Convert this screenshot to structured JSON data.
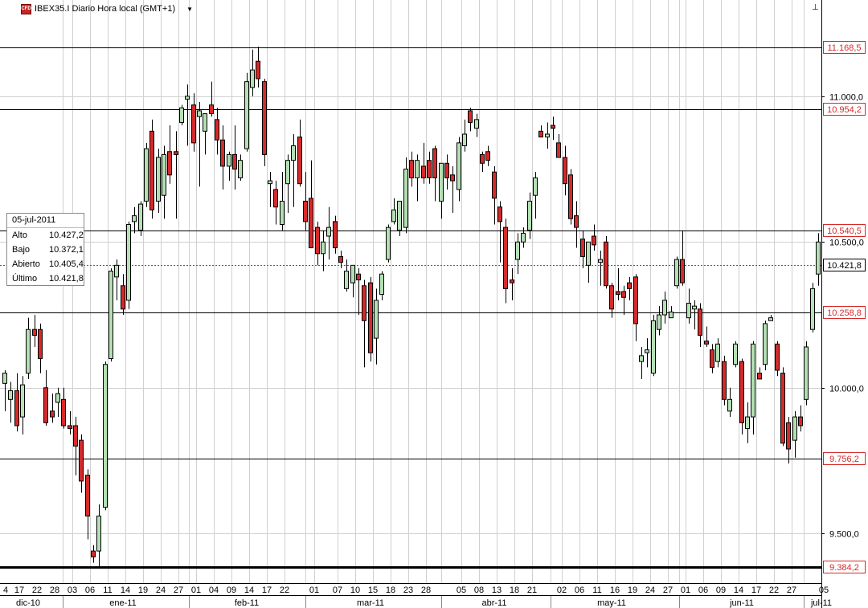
{
  "header": {
    "icon_label": "CFD",
    "title": "IBEX35.I Diario Hora local (GMT+1)",
    "dropdown_glyph": "▼",
    "pin_glyph": "⊥"
  },
  "info_box": {
    "date": "05-jul-2011",
    "rows": [
      {
        "label": "Alto",
        "value": "10.427,2"
      },
      {
        "label": "Bajo",
        "value": "10.372,1"
      },
      {
        "label": "Abierto",
        "value": "10.405,4"
      },
      {
        "label": "Último",
        "value": "10.421,8"
      }
    ]
  },
  "colors": {
    "up": "#b4e0b4",
    "down": "#d42a2a",
    "wick": "#000000",
    "grid": "#d0d0d0",
    "price_label": "#d42a2a",
    "current_line": "#d42a2a"
  },
  "chart_data": {
    "type": "candlestick",
    "title": "IBEX35.I Diario Hora local (GMT+1)",
    "ylim": [
      9330,
      11330
    ],
    "y_ticks": [
      {
        "value": 9500,
        "label": "9.500,0"
      },
      {
        "value": 10000,
        "label": "10.000,0"
      },
      {
        "value": 10500,
        "label": "10.500,0"
      },
      {
        "value": 11000,
        "label": "11.000,0"
      }
    ],
    "levels": [
      {
        "value": 11168.5,
        "label": "11.168,5"
      },
      {
        "value": 10954.2,
        "label": "10.954,2"
      },
      {
        "value": 10540.5,
        "label": "10.540,5"
      },
      {
        "value": 10258.8,
        "label": "10.258,8"
      },
      {
        "value": 9756.2,
        "label": "9.756,2"
      },
      {
        "value": 9384.2,
        "label": "9.384,2"
      }
    ],
    "current": {
      "value": 10421.8,
      "label": "10.421,8"
    },
    "x_day_labels": [
      {
        "label": "4",
        "i": 0.2
      },
      {
        "label": "17",
        "i": 2.5
      },
      {
        "label": "22",
        "i": 5.5
      },
      {
        "label": "28",
        "i": 8.5
      },
      {
        "label": "03",
        "i": 11.5
      },
      {
        "label": "06",
        "i": 14.5
      },
      {
        "label": "11",
        "i": 17.5
      },
      {
        "label": "14",
        "i": 20.5
      },
      {
        "label": "19",
        "i": 23.5
      },
      {
        "label": "24",
        "i": 26.5
      },
      {
        "label": "27",
        "i": 29.5
      },
      {
        "label": "01",
        "i": 32.5
      },
      {
        "label": "04",
        "i": 35.5
      },
      {
        "label": "09",
        "i": 38.5
      },
      {
        "label": "14",
        "i": 41.5
      },
      {
        "label": "17",
        "i": 44.5
      },
      {
        "label": "22",
        "i": 47.5
      },
      {
        "label": "01",
        "i": 52.5
      },
      {
        "label": "07",
        "i": 56.5
      },
      {
        "label": "10",
        "i": 59.5
      },
      {
        "label": "15",
        "i": 62.5
      },
      {
        "label": "18",
        "i": 65.5
      },
      {
        "label": "23",
        "i": 68.5
      },
      {
        "label": "28",
        "i": 71.5
      },
      {
        "label": "05",
        "i": 77.5
      },
      {
        "label": "08",
        "i": 80.5
      },
      {
        "label": "13",
        "i": 83.5
      },
      {
        "label": "18",
        "i": 86.5
      },
      {
        "label": "21",
        "i": 89.5
      },
      {
        "label": "02",
        "i": 94.5
      },
      {
        "label": "06",
        "i": 97.5
      },
      {
        "label": "11",
        "i": 100.5
      },
      {
        "label": "16",
        "i": 103.5
      },
      {
        "label": "19",
        "i": 106.5
      },
      {
        "label": "24",
        "i": 109.5
      },
      {
        "label": "27",
        "i": 112.5
      },
      {
        "label": "01",
        "i": 115.5
      },
      {
        "label": "06",
        "i": 118.5
      },
      {
        "label": "09",
        "i": 121.5
      },
      {
        "label": "14",
        "i": 124.5
      },
      {
        "label": "17",
        "i": 127.5
      },
      {
        "label": "22",
        "i": 130.5
      },
      {
        "label": "27",
        "i": 133.5
      },
      {
        "label": "05",
        "i": 139
      }
    ],
    "x_month_labels": [
      {
        "label": "dic-10",
        "i": 4
      },
      {
        "label": "ene-11",
        "i": 20
      },
      {
        "label": "feb-11",
        "i": 41
      },
      {
        "label": "mar-11",
        "i": 62
      },
      {
        "label": "abr-11",
        "i": 83
      },
      {
        "label": "may-11",
        "i": 103
      },
      {
        "label": "jun-11",
        "i": 125
      },
      {
        "label": "jul-11",
        "i": 138.5
      }
    ],
    "x_month_separators": [
      9.8,
      31.2,
      51,
      74,
      92.6,
      114.4,
      135.5
    ],
    "x_grid": [
      9.8,
      11.5,
      14.5,
      17.5,
      20.5,
      23.5,
      26.5,
      29.5,
      31.2,
      32.5,
      35.5,
      38.5,
      41.5,
      44.5,
      47.5,
      51,
      52.5,
      56.5,
      59.5,
      62.5,
      65.5,
      68.5,
      71.5,
      74,
      77.5,
      80.5,
      83.5,
      86.5,
      89.5,
      92.6,
      94.5,
      97.5,
      100.5,
      103.5,
      106.5,
      109.5,
      112.5,
      114.4,
      115.5,
      118.5,
      121.5,
      124.5,
      127.5,
      130.5,
      133.5,
      135.5
    ],
    "candles": [
      {
        "o": 10015,
        "h": 10060,
        "l": 9920,
        "c": 10050
      },
      {
        "o": 9960,
        "h": 10020,
        "l": 9880,
        "c": 9990
      },
      {
        "o": 9990,
        "h": 10050,
        "l": 9850,
        "c": 9870
      },
      {
        "o": 9900,
        "h": 10040,
        "l": 9840,
        "c": 10010
      },
      {
        "o": 10050,
        "h": 10240,
        "l": 10030,
        "c": 10200
      },
      {
        "o": 10200,
        "h": 10250,
        "l": 10140,
        "c": 10180
      },
      {
        "o": 10200,
        "h": 10220,
        "l": 10050,
        "c": 10100
      },
      {
        "o": 10000,
        "h": 10060,
        "l": 9870,
        "c": 9880
      },
      {
        "o": 9920,
        "h": 9980,
        "l": 9880,
        "c": 9900
      },
      {
        "o": 9950,
        "h": 10000,
        "l": 9900,
        "c": 9980
      },
      {
        "o": 9960,
        "h": 10000,
        "l": 9860,
        "c": 9870
      },
      {
        "o": 9870,
        "h": 9920,
        "l": 9840,
        "c": 9860
      },
      {
        "o": 9870,
        "h": 9900,
        "l": 9700,
        "c": 9800
      },
      {
        "o": 9820,
        "h": 9840,
        "l": 9640,
        "c": 9680
      },
      {
        "o": 9700,
        "h": 9720,
        "l": 9480,
        "c": 9560
      },
      {
        "o": 9440,
        "h": 9460,
        "l": 9400,
        "c": 9420
      },
      {
        "o": 9440,
        "h": 9600,
        "l": 9380,
        "c": 9560
      },
      {
        "o": 9590,
        "h": 10090,
        "l": 9580,
        "c": 10080
      },
      {
        "o": 10100,
        "h": 10410,
        "l": 10090,
        "c": 10400
      },
      {
        "o": 10380,
        "h": 10440,
        "l": 10300,
        "c": 10420
      },
      {
        "o": 10350,
        "h": 10390,
        "l": 10250,
        "c": 10270
      },
      {
        "o": 10300,
        "h": 10570,
        "l": 10270,
        "c": 10560
      },
      {
        "o": 10570,
        "h": 10620,
        "l": 10530,
        "c": 10590
      },
      {
        "o": 10540,
        "h": 10640,
        "l": 10520,
        "c": 10630
      },
      {
        "o": 10640,
        "h": 10840,
        "l": 10620,
        "c": 10820
      },
      {
        "o": 10880,
        "h": 10920,
        "l": 10580,
        "c": 10610
      },
      {
        "o": 10640,
        "h": 10820,
        "l": 10600,
        "c": 10790
      },
      {
        "o": 10660,
        "h": 10830,
        "l": 10580,
        "c": 10800
      },
      {
        "o": 10810,
        "h": 10900,
        "l": 10700,
        "c": 10730
      },
      {
        "o": 10810,
        "h": 10880,
        "l": 10580,
        "c": 10800
      },
      {
        "o": 10910,
        "h": 10970,
        "l": 10900,
        "c": 10960
      },
      {
        "o": 10990,
        "h": 11040,
        "l": 10830,
        "c": 11000
      },
      {
        "o": 10970,
        "h": 11010,
        "l": 10810,
        "c": 10840
      },
      {
        "o": 10930,
        "h": 10980,
        "l": 10690,
        "c": 10950
      },
      {
        "o": 10880,
        "h": 10940,
        "l": 10800,
        "c": 10940
      },
      {
        "o": 10970,
        "h": 11050,
        "l": 10930,
        "c": 10940
      },
      {
        "o": 10920,
        "h": 10960,
        "l": 10800,
        "c": 10850
      },
      {
        "o": 10850,
        "h": 10900,
        "l": 10680,
        "c": 10760
      },
      {
        "o": 10760,
        "h": 10810,
        "l": 10710,
        "c": 10800
      },
      {
        "o": 10800,
        "h": 10900,
        "l": 10680,
        "c": 10750
      },
      {
        "o": 10720,
        "h": 10800,
        "l": 10710,
        "c": 10780
      },
      {
        "o": 10820,
        "h": 11080,
        "l": 10810,
        "c": 11050
      },
      {
        "o": 11030,
        "h": 11160,
        "l": 11000,
        "c": 11090
      },
      {
        "o": 11120,
        "h": 11170,
        "l": 11030,
        "c": 11060
      },
      {
        "o": 11050,
        "h": 11060,
        "l": 10760,
        "c": 10800
      },
      {
        "o": 10700,
        "h": 10740,
        "l": 10620,
        "c": 10710
      },
      {
        "o": 10680,
        "h": 10710,
        "l": 10560,
        "c": 10620
      },
      {
        "o": 10560,
        "h": 10740,
        "l": 10540,
        "c": 10640
      },
      {
        "o": 10700,
        "h": 10800,
        "l": 10600,
        "c": 10780
      },
      {
        "o": 10780,
        "h": 10870,
        "l": 10620,
        "c": 10830
      },
      {
        "o": 10860,
        "h": 10920,
        "l": 10690,
        "c": 10700
      },
      {
        "o": 10640,
        "h": 10740,
        "l": 10540,
        "c": 10570
      },
      {
        "o": 10650,
        "h": 10780,
        "l": 10480,
        "c": 10480
      },
      {
        "o": 10550,
        "h": 10570,
        "l": 10420,
        "c": 10460
      },
      {
        "o": 10460,
        "h": 10540,
        "l": 10400,
        "c": 10500
      },
      {
        "o": 10520,
        "h": 10620,
        "l": 10440,
        "c": 10550
      },
      {
        "o": 10570,
        "h": 10590,
        "l": 10460,
        "c": 10480
      },
      {
        "o": 10450,
        "h": 10470,
        "l": 10410,
        "c": 10430
      },
      {
        "o": 10340,
        "h": 10440,
        "l": 10330,
        "c": 10400
      },
      {
        "o": 10360,
        "h": 10420,
        "l": 10310,
        "c": 10420
      },
      {
        "o": 10390,
        "h": 10410,
        "l": 10250,
        "c": 10370
      },
      {
        "o": 10350,
        "h": 10370,
        "l": 10070,
        "c": 10230
      },
      {
        "o": 10360,
        "h": 10380,
        "l": 10090,
        "c": 10120
      },
      {
        "o": 10170,
        "h": 10340,
        "l": 10080,
        "c": 10300
      },
      {
        "o": 10320,
        "h": 10400,
        "l": 10300,
        "c": 10390
      },
      {
        "o": 10440,
        "h": 10560,
        "l": 10430,
        "c": 10550
      },
      {
        "o": 10570,
        "h": 10650,
        "l": 10560,
        "c": 10610
      },
      {
        "o": 10540,
        "h": 10640,
        "l": 10520,
        "c": 10640
      },
      {
        "o": 10550,
        "h": 10790,
        "l": 10530,
        "c": 10750
      },
      {
        "o": 10780,
        "h": 10810,
        "l": 10690,
        "c": 10720
      },
      {
        "o": 10720,
        "h": 10800,
        "l": 10640,
        "c": 10780
      },
      {
        "o": 10760,
        "h": 10840,
        "l": 10700,
        "c": 10720
      },
      {
        "o": 10780,
        "h": 10810,
        "l": 10700,
        "c": 10720
      },
      {
        "o": 10820,
        "h": 10830,
        "l": 10640,
        "c": 10720
      },
      {
        "o": 10640,
        "h": 10770,
        "l": 10580,
        "c": 10770
      },
      {
        "o": 10770,
        "h": 10800,
        "l": 10680,
        "c": 10720
      },
      {
        "o": 10730,
        "h": 10760,
        "l": 10600,
        "c": 10710
      },
      {
        "o": 10680,
        "h": 10860,
        "l": 10640,
        "c": 10840
      },
      {
        "o": 10830,
        "h": 10920,
        "l": 10810,
        "c": 10870
      },
      {
        "o": 10950,
        "h": 10960,
        "l": 10880,
        "c": 10910
      },
      {
        "o": 10890,
        "h": 10940,
        "l": 10860,
        "c": 10920
      },
      {
        "o": 10800,
        "h": 10810,
        "l": 10740,
        "c": 10770
      },
      {
        "o": 10810,
        "h": 10830,
        "l": 10760,
        "c": 10780
      },
      {
        "o": 10740,
        "h": 10760,
        "l": 10560,
        "c": 10650
      },
      {
        "o": 10620,
        "h": 10640,
        "l": 10430,
        "c": 10570
      },
      {
        "o": 10550,
        "h": 10580,
        "l": 10290,
        "c": 10340
      },
      {
        "o": 10370,
        "h": 10410,
        "l": 10300,
        "c": 10360
      },
      {
        "o": 10440,
        "h": 10530,
        "l": 10390,
        "c": 10500
      },
      {
        "o": 10500,
        "h": 10550,
        "l": 10480,
        "c": 10530
      },
      {
        "o": 10540,
        "h": 10670,
        "l": 10510,
        "c": 10640
      },
      {
        "o": 10660,
        "h": 10740,
        "l": 10580,
        "c": 10720
      },
      {
        "o": 10880,
        "h": 10900,
        "l": 10860,
        "c": 10860
      },
      {
        "o": 10860,
        "h": 10910,
        "l": 10820,
        "c": 10870
      },
      {
        "o": 10900,
        "h": 10930,
        "l": 10850,
        "c": 10890
      },
      {
        "o": 10840,
        "h": 10870,
        "l": 10800,
        "c": 10790
      },
      {
        "o": 10790,
        "h": 10830,
        "l": 10660,
        "c": 10700
      },
      {
        "o": 10730,
        "h": 10750,
        "l": 10560,
        "c": 10580
      },
      {
        "o": 10590,
        "h": 10640,
        "l": 10480,
        "c": 10550
      },
      {
        "o": 10510,
        "h": 10540,
        "l": 10410,
        "c": 10450
      },
      {
        "o": 10420,
        "h": 10490,
        "l": 10360,
        "c": 10500
      },
      {
        "o": 10520,
        "h": 10560,
        "l": 10470,
        "c": 10490
      },
      {
        "o": 10430,
        "h": 10470,
        "l": 10350,
        "c": 10440
      },
      {
        "o": 10500,
        "h": 10520,
        "l": 10340,
        "c": 10350
      },
      {
        "o": 10350,
        "h": 10360,
        "l": 10240,
        "c": 10270
      },
      {
        "o": 10330,
        "h": 10410,
        "l": 10300,
        "c": 10320
      },
      {
        "o": 10330,
        "h": 10350,
        "l": 10250,
        "c": 10310
      },
      {
        "o": 10360,
        "h": 10380,
        "l": 10300,
        "c": 10340
      },
      {
        "o": 10380,
        "h": 10390,
        "l": 10160,
        "c": 10220
      },
      {
        "o": 10090,
        "h": 10140,
        "l": 10030,
        "c": 10110
      },
      {
        "o": 10120,
        "h": 10170,
        "l": 10070,
        "c": 10130
      },
      {
        "o": 10050,
        "h": 10250,
        "l": 10040,
        "c": 10230
      },
      {
        "o": 10200,
        "h": 10280,
        "l": 10180,
        "c": 10250
      },
      {
        "o": 10250,
        "h": 10330,
        "l": 10220,
        "c": 10300
      },
      {
        "o": 10240,
        "h": 10280,
        "l": 10240,
        "c": 10260
      },
      {
        "o": 10350,
        "h": 10450,
        "l": 10340,
        "c": 10440
      },
      {
        "o": 10440,
        "h": 10540,
        "l": 10350,
        "c": 10360
      },
      {
        "o": 10240,
        "h": 10340,
        "l": 10220,
        "c": 10290
      },
      {
        "o": 10270,
        "h": 10300,
        "l": 10200,
        "c": 10280
      },
      {
        "o": 10270,
        "h": 10290,
        "l": 10140,
        "c": 10180
      },
      {
        "o": 10160,
        "h": 10210,
        "l": 10140,
        "c": 10150
      },
      {
        "o": 10130,
        "h": 10150,
        "l": 10050,
        "c": 10070
      },
      {
        "o": 10090,
        "h": 10170,
        "l": 10070,
        "c": 10150
      },
      {
        "o": 10090,
        "h": 10110,
        "l": 9940,
        "c": 9960
      },
      {
        "o": 9920,
        "h": 10000,
        "l": 9900,
        "c": 9960
      },
      {
        "o": 10080,
        "h": 10160,
        "l": 10070,
        "c": 10150
      },
      {
        "o": 10090,
        "h": 10100,
        "l": 9840,
        "c": 9880
      },
      {
        "o": 9860,
        "h": 9950,
        "l": 9810,
        "c": 9900
      },
      {
        "o": 9900,
        "h": 10160,
        "l": 9840,
        "c": 10150
      },
      {
        "o": 10050,
        "h": 10070,
        "l": 10030,
        "c": 10030
      },
      {
        "o": 10080,
        "h": 10230,
        "l": 10060,
        "c": 10220
      },
      {
        "o": 10230,
        "h": 10250,
        "l": 10230,
        "c": 10240
      },
      {
        "o": 10150,
        "h": 10160,
        "l": 10040,
        "c": 10060
      },
      {
        "o": 10050,
        "h": 10070,
        "l": 9800,
        "c": 9810
      },
      {
        "o": 9880,
        "h": 9900,
        "l": 9740,
        "c": 9790
      },
      {
        "o": 9820,
        "h": 9920,
        "l": 9760,
        "c": 9900
      },
      {
        "o": 9900,
        "h": 9940,
        "l": 9850,
        "c": 9870
      },
      {
        "o": 9960,
        "h": 10160,
        "l": 9940,
        "c": 10140
      },
      {
        "o": 10200,
        "h": 10360,
        "l": 10190,
        "c": 10340
      },
      {
        "o": 10390,
        "h": 10530,
        "l": 10350,
        "c": 10500
      },
      {
        "o": 10500,
        "h": 10530,
        "l": 10470,
        "c": 10480
      },
      {
        "o": 10405.4,
        "h": 10427.2,
        "l": 10372.1,
        "c": 10421.8
      }
    ]
  }
}
